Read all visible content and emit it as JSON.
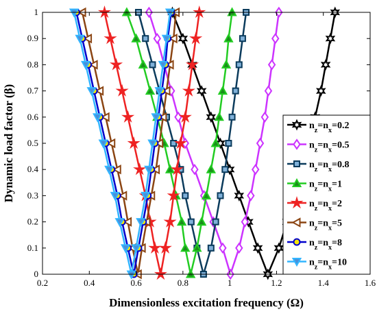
{
  "chart_data": {
    "type": "line",
    "xlabel": "Dimensionless excitation frequency (Ω)",
    "ylabel": "Dynamic load factor (β)",
    "xlim": [
      0.2,
      1.6
    ],
    "ylim": [
      0,
      1
    ],
    "xticks": [
      "0.2",
      "0.4",
      "0.6",
      "0.8",
      "1",
      "1.2",
      "1.4",
      "1.6"
    ],
    "yticks": [
      "0",
      "0.1",
      "0.2",
      "0.3",
      "0.4",
      "0.5",
      "0.6",
      "0.7",
      "0.8",
      "0.9",
      "1"
    ],
    "grid": false,
    "legend_position": "right",
    "y": [
      1,
      0.9,
      0.8,
      0.7,
      0.6,
      0.5,
      0.4,
      0.3,
      0.2,
      0.1,
      0,
      0.1,
      0.2,
      0.3,
      0.4,
      0.5,
      0.6,
      0.7,
      0.8,
      0.9,
      1
    ],
    "series": [
      {
        "name": "0.2",
        "color": "#000000",
        "marker": "hexagram",
        "x": [
          0.755,
          0.8,
          0.84,
          0.88,
          0.92,
          0.96,
          1.0,
          1.04,
          1.08,
          1.12,
          1.163,
          1.21,
          1.245,
          1.28,
          1.31,
          1.34,
          1.365,
          1.39,
          1.41,
          1.43,
          1.45
        ]
      },
      {
        "name": "0.5",
        "color": "#cc33ff",
        "marker": "diamond",
        "x": [
          0.655,
          0.69,
          0.72,
          0.75,
          0.78,
          0.81,
          0.85,
          0.89,
          0.93,
          0.97,
          1.003,
          1.04,
          1.065,
          1.09,
          1.11,
          1.13,
          1.15,
          1.165,
          1.18,
          1.195,
          1.21
        ]
      },
      {
        "name": "0.8",
        "color": "#0b3b5c",
        "marker": "square",
        "x": [
          0.61,
          0.64,
          0.67,
          0.7,
          0.73,
          0.76,
          0.79,
          0.81,
          0.835,
          0.86,
          0.888,
          0.92,
          0.94,
          0.96,
          0.98,
          0.995,
          1.01,
          1.025,
          1.04,
          1.055,
          1.07
        ]
      },
      {
        "name": "1",
        "color": "#22cc22",
        "marker": "triangle",
        "x": [
          0.56,
          0.6,
          0.63,
          0.66,
          0.69,
          0.72,
          0.745,
          0.77,
          0.795,
          0.81,
          0.833,
          0.86,
          0.88,
          0.9,
          0.92,
          0.94,
          0.955,
          0.97,
          0.985,
          0.995,
          1.01
        ]
      },
      {
        "name": "2",
        "color": "#ee2222",
        "marker": "pentagram",
        "x": [
          0.465,
          0.49,
          0.515,
          0.54,
          0.565,
          0.59,
          0.615,
          0.64,
          0.66,
          0.68,
          0.705,
          0.725,
          0.745,
          0.76,
          0.775,
          0.79,
          0.81,
          0.825,
          0.84,
          0.855,
          0.87
        ]
      },
      {
        "name": "5",
        "color": "#8b4513",
        "marker": "triangle-left",
        "x": [
          0.37,
          0.395,
          0.42,
          0.445,
          0.47,
          0.495,
          0.52,
          0.545,
          0.565,
          0.585,
          0.608,
          0.625,
          0.645,
          0.665,
          0.685,
          0.7,
          0.715,
          0.73,
          0.745,
          0.76,
          0.77
        ]
      },
      {
        "name": "8",
        "color": "#0000cc",
        "marker": "circle",
        "x": [
          0.345,
          0.37,
          0.395,
          0.42,
          0.445,
          0.47,
          0.495,
          0.52,
          0.54,
          0.565,
          0.59,
          0.61,
          0.63,
          0.65,
          0.665,
          0.68,
          0.695,
          0.71,
          0.725,
          0.735,
          0.75
        ]
      },
      {
        "name": "10",
        "color": "#33b5ff",
        "marker": "triangle-down",
        "x": [
          0.335,
          0.36,
          0.385,
          0.41,
          0.435,
          0.46,
          0.485,
          0.51,
          0.53,
          0.555,
          0.58,
          0.6,
          0.62,
          0.64,
          0.655,
          0.67,
          0.685,
          0.7,
          0.715,
          0.73,
          0.745
        ]
      }
    ]
  }
}
